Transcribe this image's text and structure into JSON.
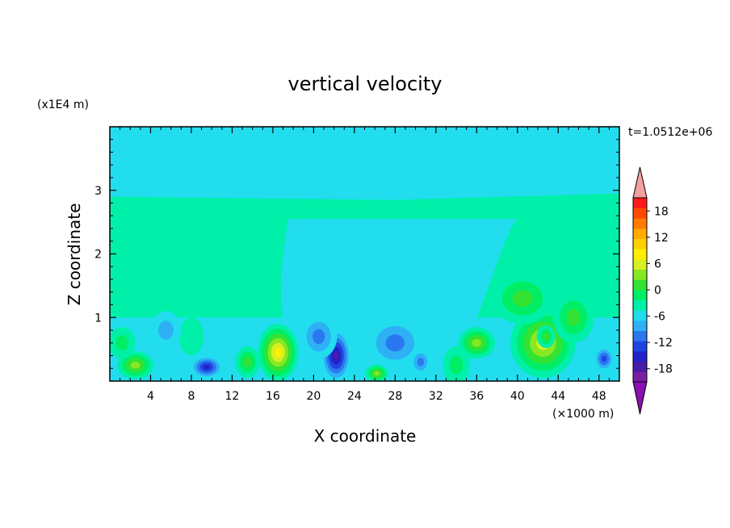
{
  "chart_data": {
    "type": "heatmap",
    "title": "vertical velocity",
    "xlabel": "X coordinate",
    "ylabel": "Z coordinate",
    "x_unit": "(×1000 m)",
    "y_unit": "(x1E4 m)",
    "time_label": "t=1.0512e+06",
    "xlim": [
      0,
      50
    ],
    "ylim": [
      0,
      4
    ],
    "xticks": [
      4,
      8,
      12,
      16,
      20,
      24,
      28,
      32,
      36,
      40,
      44,
      48
    ],
    "yticks": [
      1,
      2,
      3
    ],
    "colorbar": {
      "range": [
        -21,
        21
      ],
      "step": 3,
      "tick_values": [
        18,
        12,
        6,
        0,
        -6,
        -12,
        -18
      ],
      "colors": [
        "#7a1fa2",
        "#4a1aa8",
        "#2222c8",
        "#1e44e0",
        "#2a78f0",
        "#2fb0f5",
        "#22ddee",
        "#00f0aa",
        "#00ee66",
        "#33e233",
        "#88e822",
        "#d8f020",
        "#fff000",
        "#ffd000",
        "#ffaa00",
        "#ff7a00",
        "#ff4a00",
        "#ff1a1a"
      ],
      "extend_low_color": "#8a10b0",
      "extend_high_color": "#f4a0a0"
    },
    "background_value": -3,
    "field": [
      {
        "x": 2.5,
        "z": 0.25,
        "rx": 1.8,
        "rz": 0.22,
        "w": 9
      },
      {
        "x": 1.2,
        "z": 0.6,
        "rx": 1.3,
        "rz": 0.25,
        "w": 3
      },
      {
        "x": 9.5,
        "z": 0.22,
        "rx": 1.6,
        "rz": 0.18,
        "w": -12
      },
      {
        "x": 8.0,
        "z": 0.7,
        "rx": 1.2,
        "rz": 0.3,
        "w": 2
      },
      {
        "x": 16.5,
        "z": 0.45,
        "rx": 2.0,
        "rz": 0.45,
        "w": 15
      },
      {
        "x": 13.5,
        "z": 0.3,
        "rx": 1.2,
        "rz": 0.25,
        "w": 7
      },
      {
        "x": 22.2,
        "z": 0.4,
        "rx": 1.5,
        "rz": 0.42,
        "w": -15
      },
      {
        "x": 20.5,
        "z": 0.7,
        "rx": 1.8,
        "rz": 0.35,
        "w": -7
      },
      {
        "x": 26.2,
        "z": 0.12,
        "rx": 1.1,
        "rz": 0.14,
        "w": 9
      },
      {
        "x": 28.0,
        "z": 0.6,
        "rx": 2.8,
        "rz": 0.4,
        "w": -6
      },
      {
        "x": 30.5,
        "z": 0.3,
        "rx": 1.0,
        "rz": 0.2,
        "w": -8
      },
      {
        "x": 36.0,
        "z": 0.6,
        "rx": 1.8,
        "rz": 0.25,
        "w": 10
      },
      {
        "x": 42.5,
        "z": 0.6,
        "rx": 3.2,
        "rz": 0.55,
        "w": 14
      },
      {
        "x": 42.8,
        "z": 0.7,
        "rx": 0.9,
        "rz": 0.18,
        "w": 6
      },
      {
        "x": 40.5,
        "z": 1.3,
        "rx": 3.0,
        "rz": 0.4,
        "w": 6
      },
      {
        "x": 48.5,
        "z": 0.35,
        "rx": 1.0,
        "rz": 0.2,
        "w": -11
      },
      {
        "x": 34.0,
        "z": 0.25,
        "rx": 1.3,
        "rz": 0.3,
        "w": 3
      },
      {
        "x": 45.5,
        "z": 1.0,
        "rx": 2.0,
        "rz": 0.4,
        "w": 8
      },
      {
        "x": 5.5,
        "z": 0.8,
        "rx": 1.5,
        "rz": 0.3,
        "w": -5
      }
    ]
  }
}
